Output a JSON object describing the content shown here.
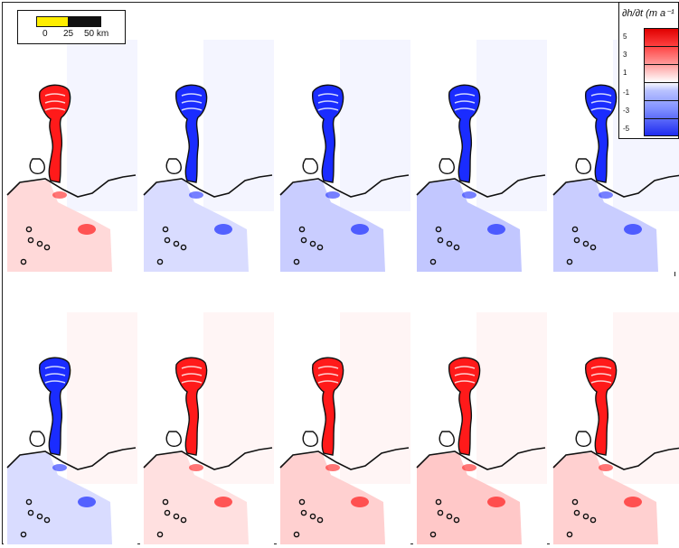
{
  "figure": {
    "panels": 10,
    "rows": 2,
    "columns": 5,
    "row_colors": [
      "mixed-red-blue",
      "mixed-blue-red"
    ]
  },
  "scale_bar": {
    "labels": [
      "0",
      "25",
      "50 km"
    ],
    "colors": [
      "#ffee00",
      "#111111"
    ]
  },
  "legend": {
    "title": "∂h/∂t (m a⁻¹",
    "ticks": [
      "5",
      "3",
      "1",
      "-1",
      "-3",
      "-5"
    ],
    "colors": {
      "max": "#e00000",
      "mid": "#ffffff",
      "min": "#1f2cf0"
    }
  }
}
